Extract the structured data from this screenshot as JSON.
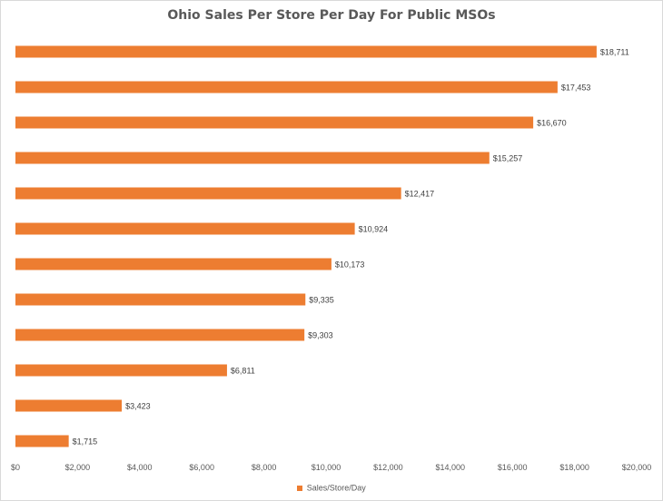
{
  "chart_data": {
    "type": "bar",
    "orientation": "horizontal",
    "title": "Ohio Sales Per Store Per Day For Public MSOs",
    "xlabel": "",
    "ylabel": "",
    "xlim": [
      0,
      20000
    ],
    "x_ticks": [
      "$0",
      "$2,000",
      "$4,000",
      "$6,000",
      "$8,000",
      "$10,000",
      "$12,000",
      "$14,000",
      "$16,000",
      "$18,000",
      "$20,000"
    ],
    "grid": false,
    "legend_position": "bottom",
    "series": [
      {
        "name": "Sales/Store/Day",
        "color": "#ed7d31",
        "values": [
          18711,
          17453,
          16670,
          15257,
          12417,
          10924,
          10173,
          9335,
          9303,
          6811,
          3423,
          1715
        ],
        "labels": [
          "$18,711",
          "$17,453",
          "$16,670",
          "$15,257",
          "$12,417",
          "$10,924",
          "$10,173",
          "$9,335",
          "$9,303",
          "$6,811",
          "$3,423",
          "$1,715"
        ]
      }
    ]
  }
}
